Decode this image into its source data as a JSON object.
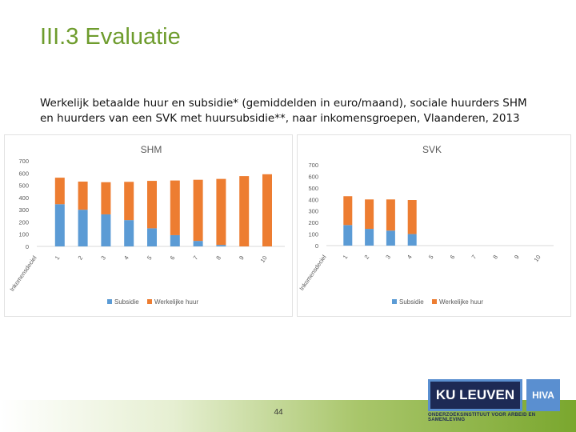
{
  "page": {
    "title": "III.3 Evaluatie",
    "subtitle": "Werkelijk betaalde huur en subsidie* (gemiddelden in euro/maand), sociale huurders SHM en huurders van een SVK met huursubsidie**, naar inkomensgroepen, Vlaanderen, 2013",
    "page_number": "44"
  },
  "logos": {
    "ku_leuven": "KU LEUVEN",
    "hiva": "HIVA",
    "hiva_sub": "ONDERZOEKSINSTITUUT VOOR ARBEID EN SAMENLEVING"
  },
  "colors": {
    "subsidie": "#5b9bd5",
    "werkelijke_huur": "#ed7d31",
    "green_title": "#6e9c2d"
  },
  "chart_data": [
    {
      "type": "bar",
      "stacked": true,
      "title": "SHM",
      "xlabel": "Inkomensdeciel",
      "categories": [
        "Inkomensdeciel",
        "1",
        "2",
        "3",
        "4",
        "5",
        "6",
        "7",
        "8",
        "9",
        "10"
      ],
      "yticks": [
        "0",
        "100",
        "200",
        "300",
        "400",
        "500",
        "600",
        "700"
      ],
      "ylim": [
        0,
        700
      ],
      "grid": false,
      "legend": "bottom",
      "series": [
        {
          "name": "Subsidie",
          "values": [
            null,
            345,
            300,
            262,
            215,
            148,
            92,
            45,
            12,
            0,
            0
          ]
        },
        {
          "name": "Werkelijke huur",
          "values": [
            null,
            217,
            230,
            263,
            313,
            388,
            447,
            500,
            540,
            575,
            590
          ]
        }
      ]
    },
    {
      "type": "bar",
      "stacked": true,
      "title": "SVK",
      "xlabel": "Inkomensdeciel",
      "categories": [
        "Inkomensdeciel",
        "1",
        "2",
        "3",
        "4",
        "5",
        "6",
        "7",
        "8",
        "9",
        "10"
      ],
      "yticks": [
        "0",
        "100",
        "200",
        "300",
        "400",
        "500",
        "600",
        "700"
      ],
      "ylim": [
        0,
        700
      ],
      "grid": false,
      "legend": "bottom",
      "series": [
        {
          "name": "Subsidie",
          "values": [
            null,
            178,
            145,
            130,
            100,
            null,
            null,
            null,
            null,
            null,
            null
          ]
        },
        {
          "name": "Werkelijke huur",
          "values": [
            null,
            250,
            255,
            270,
            295,
            null,
            null,
            null,
            null,
            null,
            null
          ]
        }
      ]
    }
  ]
}
